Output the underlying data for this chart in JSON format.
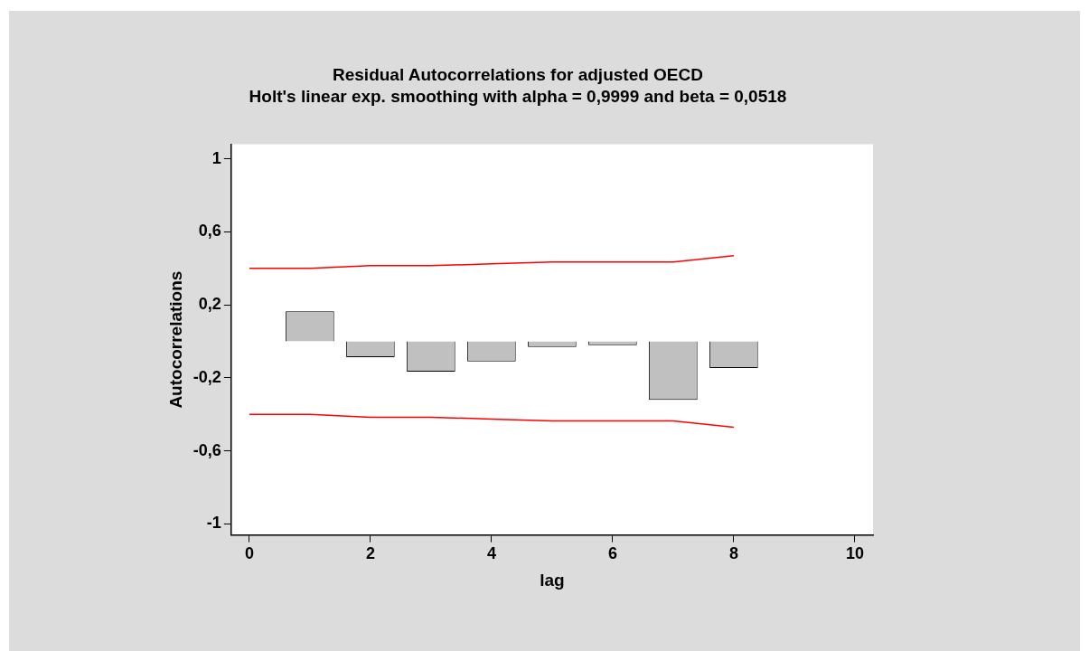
{
  "chart_data": {
    "type": "bar",
    "title": "Residual Autocorrelations for adjusted OECD",
    "subtitle": "Holt's linear exp. smoothing with alpha = 0,9999 and beta = 0,0518",
    "xlabel": "lag",
    "ylabel": "Autocorrelations",
    "x": [
      1,
      2,
      3,
      4,
      5,
      6,
      7,
      8
    ],
    "series": [
      {
        "color": "#c0c0c0",
        "values": [
          0.165,
          -0.086,
          -0.165,
          -0.11,
          -0.03,
          -0.02,
          -0.32,
          -0.145
        ]
      },
      {
        "type": "line",
        "color": "#ff0000",
        "x": [
          0,
          1,
          2,
          3,
          4,
          5,
          6,
          7,
          8
        ],
        "values": [
          0.4,
          0.4,
          0.415,
          0.415,
          0.425,
          0.435,
          0.435,
          0.435,
          0.47
        ]
      },
      {
        "type": "line",
        "color": "#ff0000",
        "x": [
          0,
          1,
          2,
          3,
          4,
          5,
          6,
          7,
          8
        ],
        "values": [
          -0.4,
          -0.4,
          -0.415,
          -0.415,
          -0.425,
          -0.435,
          -0.435,
          -0.435,
          -0.47
        ]
      }
    ],
    "xlim": [
      -0.3,
      10.3
    ],
    "ylim": [
      -1.06,
      1.08
    ],
    "xticks": [
      0,
      2,
      4,
      6,
      8,
      10
    ],
    "yticks": [
      {
        "value": -1,
        "label": "-1"
      },
      {
        "value": -0.6,
        "label": "-0,6"
      },
      {
        "value": -0.2,
        "label": "-0,2"
      },
      {
        "value": 0.2,
        "label": "0,2"
      },
      {
        "value": 0.6,
        "label": "0,6"
      },
      {
        "value": 1,
        "label": "1"
      }
    ]
  }
}
